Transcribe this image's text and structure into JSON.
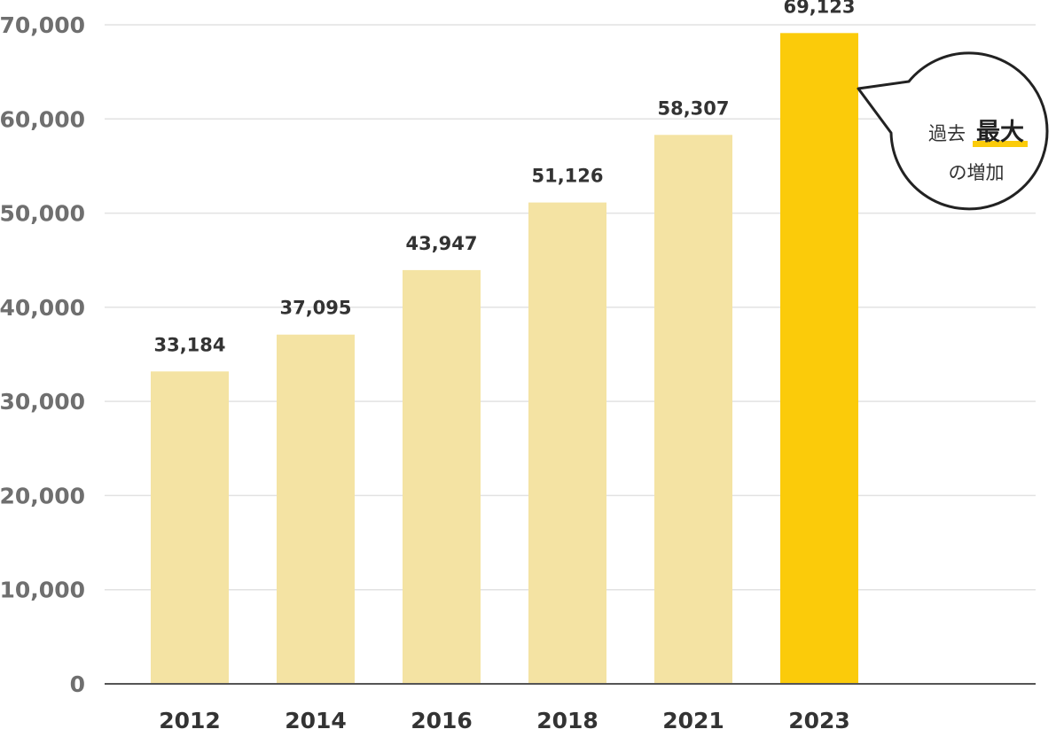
{
  "colors": {
    "bar": "#f4e3a3",
    "highlight": "#fbcb0a",
    "grid": "#e2e2e2",
    "axis": "#555555",
    "underline": "#fbcb0a"
  },
  "chart_data": {
    "type": "bar",
    "categories": [
      "2012",
      "2014",
      "2016",
      "2018",
      "2021",
      "2023"
    ],
    "values": [
      33184,
      37095,
      43947,
      51126,
      58307,
      69123
    ],
    "value_labels": [
      "33,184",
      "37,095",
      "43,947",
      "51,126",
      "58,307",
      "69,123"
    ],
    "highlight_index": 5,
    "ylim": [
      0,
      70000
    ],
    "yticks": [
      0,
      10000,
      20000,
      30000,
      40000,
      50000,
      60000,
      70000
    ],
    "ytick_labels": [
      "0",
      "10,000",
      "20,000",
      "30,000",
      "40,000",
      "50,000",
      "60,000",
      "70,000"
    ],
    "grid": true,
    "title": "",
    "xlabel": "",
    "ylabel": ""
  },
  "callout": {
    "prefix": "過去",
    "emphasis": "最大",
    "line2": "の増加"
  }
}
